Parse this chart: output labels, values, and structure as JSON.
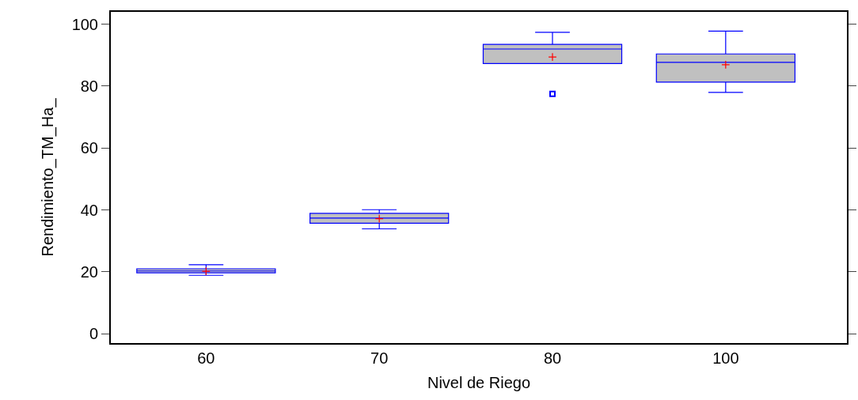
{
  "chart_data": {
    "type": "box",
    "xlabel": "Nivel de Riego",
    "ylabel": "Rendimiento_TM_Ha_",
    "categories": [
      "60",
      "70",
      "80",
      "100"
    ],
    "boxes": [
      {
        "low": 18.9,
        "q1": 19.7,
        "median": 20.3,
        "q3": 21.0,
        "high": 22.3,
        "mean": 20.2
      },
      {
        "low": 33.9,
        "q1": 35.7,
        "median": 37.4,
        "q3": 38.9,
        "high": 40.1,
        "mean": 37.2
      },
      {
        "low": 87.3,
        "q1": 87.3,
        "median": 92.0,
        "q3": 93.5,
        "high": 97.4,
        "mean": 89.4,
        "outliers": [
          77.5
        ]
      },
      {
        "low": 78.0,
        "q1": 81.3,
        "median": 87.7,
        "q3": 90.4,
        "high": 97.8,
        "mean": 86.9
      }
    ],
    "color": "#0000ff",
    "ylim": [
      -3,
      104
    ],
    "yticks": [
      0,
      20,
      40,
      60,
      80,
      100
    ]
  }
}
